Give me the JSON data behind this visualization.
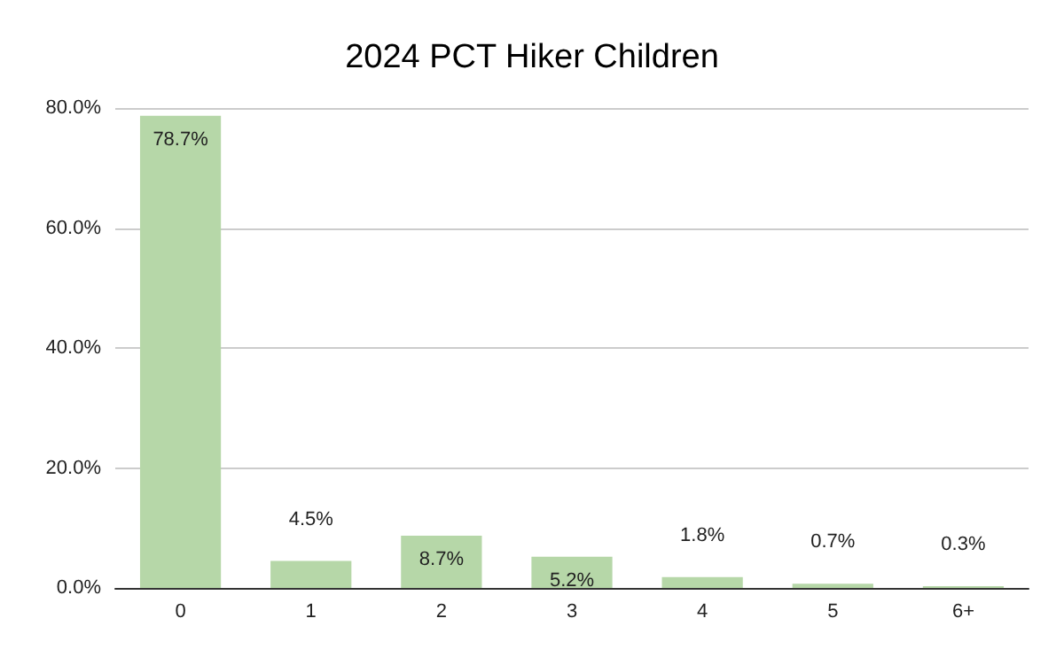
{
  "chart_data": {
    "type": "bar",
    "title": "2024 PCT Hiker Children",
    "categories": [
      "0",
      "1",
      "2",
      "3",
      "4",
      "5",
      "6+"
    ],
    "values": [
      78.7,
      4.5,
      8.7,
      5.2,
      1.8,
      0.7,
      0.3
    ],
    "value_labels": [
      "78.7%",
      "4.5%",
      "8.7%",
      "5.2%",
      "1.8%",
      "0.7%",
      "0.3%"
    ],
    "color": "#b6d7a8",
    "ylim": [
      0,
      80
    ],
    "yticks": [
      {
        "value": 0,
        "label": "0.0%"
      },
      {
        "value": 20,
        "label": "20.0%"
      },
      {
        "value": 40,
        "label": "40.0%"
      },
      {
        "value": 60,
        "label": "60.0%"
      },
      {
        "value": 80,
        "label": "80.0%"
      }
    ],
    "grid": "y"
  }
}
